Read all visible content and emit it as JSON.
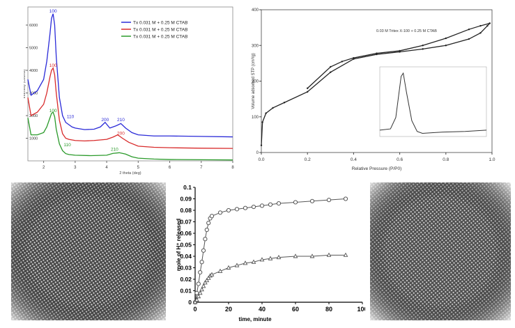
{
  "chart_data": [
    {
      "type": "line",
      "xlabel": "2 theta (deg)",
      "ylabel": "Intensity (counts)",
      "xlim": [
        1.5,
        8
      ],
      "ylim": [
        0,
        6800
      ],
      "x_ticks": [
        "2",
        "3",
        "4",
        "5",
        "6",
        "7",
        "8"
      ],
      "y_ticks": [
        "1000",
        "2000",
        "3000",
        "4000",
        "5000",
        "6000"
      ],
      "legend": {
        "placement": "top-right",
        "entries": [
          "Tx 0.031 M + 0.25 M CTAB",
          "Tx 0.031 M + 0.25 M CTAB",
          "Tx 0.031 M + 0.25 M CTAB"
        ]
      },
      "peak_labels": [
        {
          "text": "100",
          "x": 2.3,
          "y": 6550,
          "color": "#2a2ad8"
        },
        {
          "text": "110",
          "x": 2.85,
          "y": 1900,
          "color": "#2a2ad8"
        },
        {
          "text": "200",
          "x": 3.95,
          "y": 1750,
          "color": "#2a2ad8"
        },
        {
          "text": "210",
          "x": 4.45,
          "y": 1750,
          "color": "#2a2ad8"
        },
        {
          "text": "100",
          "x": 2.3,
          "y": 4150,
          "color": "#d82a2a"
        },
        {
          "text": "200",
          "x": 4.45,
          "y": 1150,
          "color": "#d82a2a"
        },
        {
          "text": "100",
          "x": 2.3,
          "y": 2150,
          "color": "#2a9a2a"
        },
        {
          "text": "110",
          "x": 2.75,
          "y": 650,
          "color": "#2a9a2a"
        },
        {
          "text": "210",
          "x": 4.25,
          "y": 450,
          "color": "#2a9a2a"
        }
      ],
      "series": [
        {
          "color": "#2a2ad8",
          "x": [
            1.5,
            1.6,
            1.8,
            2.0,
            2.1,
            2.2,
            2.25,
            2.3,
            2.35,
            2.4,
            2.5,
            2.6,
            2.7,
            2.8,
            2.9,
            3.0,
            3.3,
            3.6,
            3.8,
            3.95,
            4.1,
            4.3,
            4.45,
            4.6,
            4.8,
            5.0,
            5.5,
            6.0,
            7.0,
            8.0
          ],
          "y": [
            3600,
            2900,
            3100,
            3600,
            4400,
            5600,
            6300,
            6500,
            6000,
            4600,
            2800,
            2000,
            1700,
            1600,
            1500,
            1450,
            1380,
            1400,
            1500,
            1700,
            1450,
            1550,
            1650,
            1450,
            1250,
            1150,
            1100,
            1100,
            1080,
            1060
          ]
        },
        {
          "color": "#d82a2a",
          "x": [
            1.5,
            1.6,
            1.8,
            2.0,
            2.1,
            2.2,
            2.25,
            2.3,
            2.35,
            2.4,
            2.5,
            2.6,
            2.7,
            2.8,
            3.0,
            3.3,
            3.6,
            4.0,
            4.2,
            4.35,
            4.5,
            4.7,
            5.0,
            5.5,
            6.0,
            7.0,
            8.0
          ],
          "y": [
            2800,
            2000,
            2150,
            2500,
            3000,
            3700,
            4000,
            4100,
            3800,
            3000,
            1800,
            1200,
            1000,
            950,
            900,
            880,
            900,
            950,
            1050,
            1150,
            1000,
            820,
            650,
            600,
            580,
            560,
            550
          ]
        },
        {
          "color": "#2a9a2a",
          "x": [
            1.5,
            1.6,
            1.8,
            2.0,
            2.1,
            2.2,
            2.25,
            2.3,
            2.35,
            2.4,
            2.5,
            2.6,
            2.7,
            2.8,
            3.0,
            3.5,
            4.0,
            4.2,
            4.4,
            4.6,
            4.8,
            5.0,
            5.5,
            6.0,
            7.0,
            8.0
          ],
          "y": [
            1900,
            1150,
            1150,
            1250,
            1500,
            1900,
            2100,
            2150,
            1950,
            1400,
            750,
            450,
            320,
            280,
            250,
            230,
            250,
            330,
            360,
            300,
            180,
            120,
            80,
            60,
            50,
            40
          ]
        }
      ]
    },
    {
      "type": "line",
      "xlabel": "Relative Pressure (P/P0)",
      "ylabel": "Volume adsorbed STP (cm³/g)",
      "xlim": [
        0,
        1
      ],
      "ylim": [
        0,
        400
      ],
      "x_ticks": [
        "0.0",
        "0.2",
        "0.4",
        "0.6",
        "0.8",
        "1.0"
      ],
      "y_ticks": [
        "0",
        "100",
        "200",
        "300",
        "400"
      ],
      "annotation": "0.03 M Tritex X-100 + 0.25 M CTAB",
      "series": [
        {
          "name_role": "adsorption",
          "x": [
            0.0,
            0.005,
            0.02,
            0.05,
            0.1,
            0.2,
            0.3,
            0.4,
            0.5,
            0.6,
            0.7,
            0.8,
            0.9,
            0.95,
            0.98,
            0.99
          ],
          "y": [
            20,
            85,
            110,
            125,
            140,
            170,
            225,
            262,
            275,
            282,
            290,
            300,
            318,
            335,
            355,
            362
          ]
        },
        {
          "name_role": "desorption",
          "x": [
            0.99,
            0.95,
            0.9,
            0.8,
            0.7,
            0.6,
            0.5,
            0.4,
            0.35,
            0.3,
            0.2
          ],
          "y": [
            362,
            355,
            345,
            320,
            300,
            285,
            278,
            265,
            255,
            240,
            180
          ]
        }
      ],
      "inset": {
        "type": "line",
        "x": [
          0,
          1,
          1.5,
          2,
          2.2,
          2.5,
          3,
          3.5,
          4,
          5,
          6,
          8,
          10
        ],
        "y": [
          0.1,
          0.12,
          0.3,
          0.95,
          1.0,
          0.7,
          0.25,
          0.08,
          0.05,
          0.06,
          0.07,
          0.08,
          0.1
        ],
        "xlim": [
          0,
          10
        ],
        "ylim": [
          0,
          1.1
        ]
      }
    },
    {
      "type": "line",
      "xlabel": "time, minute",
      "ylabel": "mole of H⁺ released",
      "xlim": [
        0,
        100
      ],
      "ylim": [
        0,
        0.1
      ],
      "x_ticks": [
        "0",
        "20",
        "40",
        "60",
        "80",
        "100"
      ],
      "y_ticks": [
        "0",
        "0.01",
        "0.02",
        "0.03",
        "0.04",
        "0.05",
        "0.06",
        "0.07",
        "0.08",
        "0.09",
        "0.1"
      ],
      "series": [
        {
          "marker": "circle",
          "x": [
            0,
            1,
            2,
            3,
            4,
            5,
            6,
            7,
            8,
            9,
            10,
            15,
            20,
            25,
            30,
            35,
            40,
            45,
            50,
            60,
            70,
            80,
            90
          ],
          "y": [
            0,
            0.008,
            0.016,
            0.026,
            0.035,
            0.045,
            0.055,
            0.063,
            0.069,
            0.073,
            0.075,
            0.078,
            0.08,
            0.081,
            0.082,
            0.083,
            0.084,
            0.085,
            0.086,
            0.087,
            0.088,
            0.089,
            0.09
          ]
        },
        {
          "marker": "triangle",
          "x": [
            0,
            1,
            2,
            3,
            4,
            5,
            6,
            7,
            8,
            9,
            10,
            15,
            20,
            25,
            30,
            35,
            40,
            45,
            50,
            60,
            70,
            80,
            90
          ],
          "y": [
            0,
            0.002,
            0.005,
            0.008,
            0.011,
            0.014,
            0.017,
            0.019,
            0.021,
            0.023,
            0.024,
            0.027,
            0.03,
            0.032,
            0.034,
            0.035,
            0.037,
            0.038,
            0.039,
            0.04,
            0.04,
            0.041,
            0.041
          ]
        }
      ]
    }
  ]
}
